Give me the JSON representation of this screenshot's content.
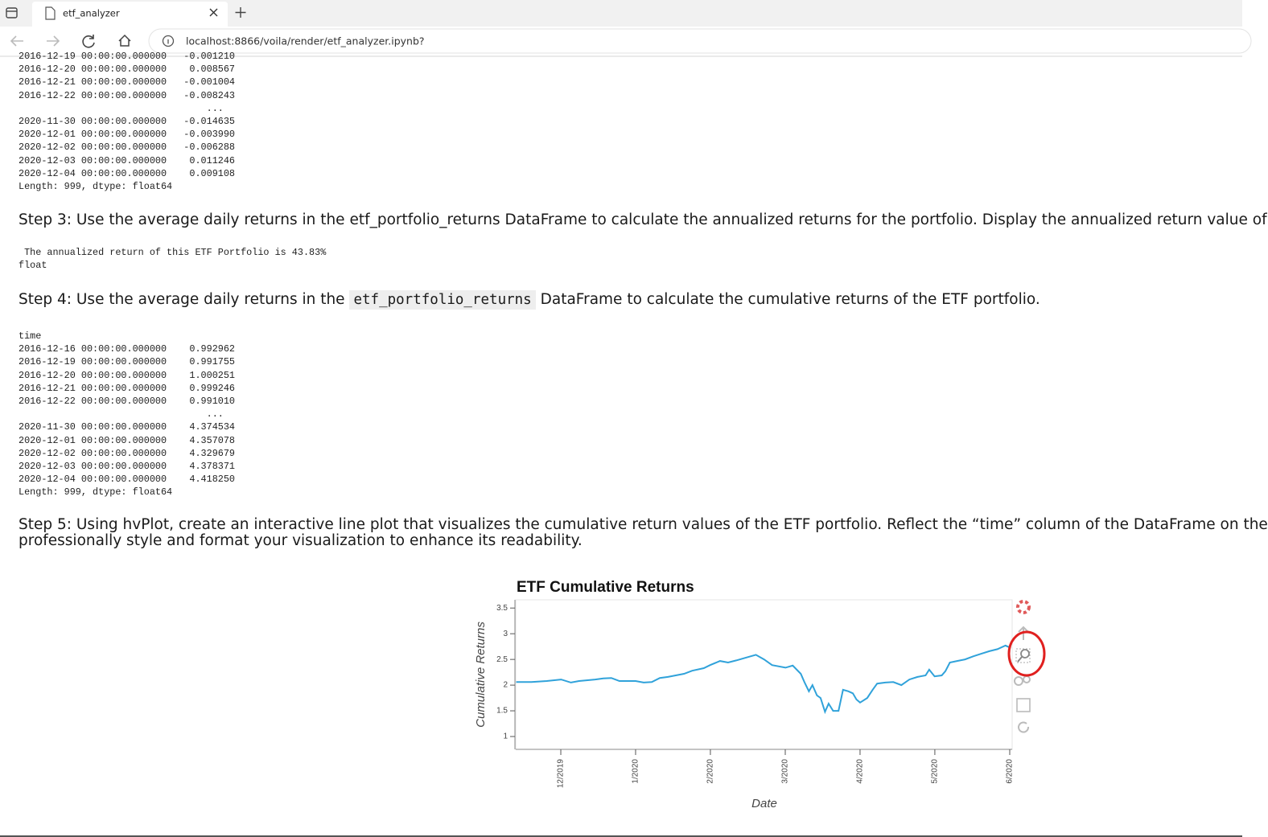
{
  "browser": {
    "tab_title": "etf_analyzer",
    "url": "localhost:8866/voila/render/etf_analyzer.ipynb?"
  },
  "output_1": {
    "lines": [
      "2016-12-19 00:00:00.000000   -0.001210",
      "2016-12-20 00:00:00.000000    0.008567",
      "2016-12-21 00:00:00.000000   -0.001004",
      "2016-12-22 00:00:00.000000   -0.008243",
      "                                 ...",
      "2020-11-30 00:00:00.000000   -0.014635",
      "2020-12-01 00:00:00.000000   -0.003990",
      "2020-12-02 00:00:00.000000   -0.006288",
      "2020-12-03 00:00:00.000000    0.011246",
      "2020-12-04 00:00:00.000000    0.009108",
      "Length: 999, dtype: float64"
    ]
  },
  "step_3": "Step 3: Use the average daily returns in the etf_portfolio_returns DataFrame to calculate the annualized returns for the portfolio. Display the annualized return value of",
  "output_2": {
    "lines": [
      " The annualized return of this ETF Portfolio is 43.83%",
      "float"
    ]
  },
  "step_4": {
    "text_before": "Step 4: Use the average daily returns in the",
    "code": "etf_portfolio_returns",
    "text_after": "DataFrame to calculate the cumulative returns of the ETF portfolio."
  },
  "output_3": {
    "lines": [
      "time",
      "2016-12-16 00:00:00.000000    0.992962",
      "2016-12-19 00:00:00.000000    0.991755",
      "2016-12-20 00:00:00.000000    1.000251",
      "2016-12-21 00:00:00.000000    0.999246",
      "2016-12-22 00:00:00.000000    0.991010",
      "                                 ...",
      "2020-11-30 00:00:00.000000    4.374534",
      "2020-12-01 00:00:00.000000    4.357078",
      "2020-12-02 00:00:00.000000    4.329679",
      "2020-12-03 00:00:00.000000    4.378371",
      "2020-12-04 00:00:00.000000    4.418250",
      "Length: 999, dtype: float64"
    ]
  },
  "step_5": {
    "lines": [
      "Step 5: Using hvPlot, create an interactive line plot that visualizes the cumulative return values of the ETF portfolio. Reflect the “time” column of the DataFrame on the",
      "professionally style and format your visualization to enhance its readability."
    ]
  },
  "chart_data": {
    "type": "line",
    "title": "ETF Cumulative Returns",
    "x_label": "Date",
    "y_label": "Cumulative Returns",
    "color": "#30a2da",
    "x": [
      2019.867,
      2019.884,
      2019.901,
      2019.917,
      2019.928,
      2019.937,
      2019.955,
      2019.964,
      2019.973,
      2019.982,
      2020.0,
      2020.009,
      2020.018,
      2020.027,
      2020.036,
      2020.054,
      2020.063,
      2020.076,
      2020.083,
      2020.094,
      2020.103,
      2020.112,
      2020.126,
      2020.134,
      2020.143,
      2020.152,
      2020.167,
      2020.175,
      2020.184,
      2020.188,
      2020.193,
      2020.197,
      2020.202,
      2020.206,
      2020.211,
      2020.215,
      2020.22,
      2020.226,
      2020.231,
      2020.237,
      2020.242,
      2020.246,
      2020.25,
      2020.258,
      2020.264,
      2020.269,
      2020.278,
      2020.287,
      2020.296,
      2020.305,
      2020.314,
      2020.323,
      2020.327,
      2020.333,
      2020.341,
      2020.345,
      2020.35,
      2020.358,
      2020.367,
      2020.376,
      2020.385,
      2020.394,
      2020.403,
      2020.412,
      2020.417
    ],
    "values": [
      2.06,
      2.06,
      2.08,
      2.11,
      2.05,
      2.08,
      2.11,
      2.13,
      2.14,
      2.08,
      2.08,
      2.05,
      2.06,
      2.14,
      2.16,
      2.22,
      2.28,
      2.33,
      2.39,
      2.47,
      2.44,
      2.48,
      2.55,
      2.59,
      2.5,
      2.39,
      2.34,
      2.38,
      2.22,
      2.06,
      1.88,
      2.0,
      1.8,
      1.75,
      1.48,
      1.64,
      1.5,
      1.5,
      1.91,
      1.88,
      1.84,
      1.72,
      1.66,
      1.75,
      1.91,
      2.03,
      2.05,
      2.06,
      2.0,
      2.11,
      2.16,
      2.19,
      2.3,
      2.17,
      2.19,
      2.27,
      2.44,
      2.47,
      2.5,
      2.56,
      2.61,
      2.66,
      2.7,
      2.77,
      2.73
    ],
    "xlim": [
      2019.8665,
      2020.4194
    ],
    "xticks": [
      {
        "value": 2019.9167,
        "label": "12/2019"
      },
      {
        "value": 2020.0,
        "label": "1/2020"
      },
      {
        "value": 2020.0833,
        "label": "2/2020"
      },
      {
        "value": 2020.1667,
        "label": "3/2020"
      },
      {
        "value": 2020.25,
        "label": "4/2020"
      },
      {
        "value": 2020.3333,
        "label": "5/2020"
      },
      {
        "value": 2020.4167,
        "label": "6/2020"
      }
    ],
    "ylim": [
      0.75,
      3.66
    ],
    "yticks": [
      1,
      1.5,
      2,
      2.5,
      3,
      3.5
    ]
  }
}
